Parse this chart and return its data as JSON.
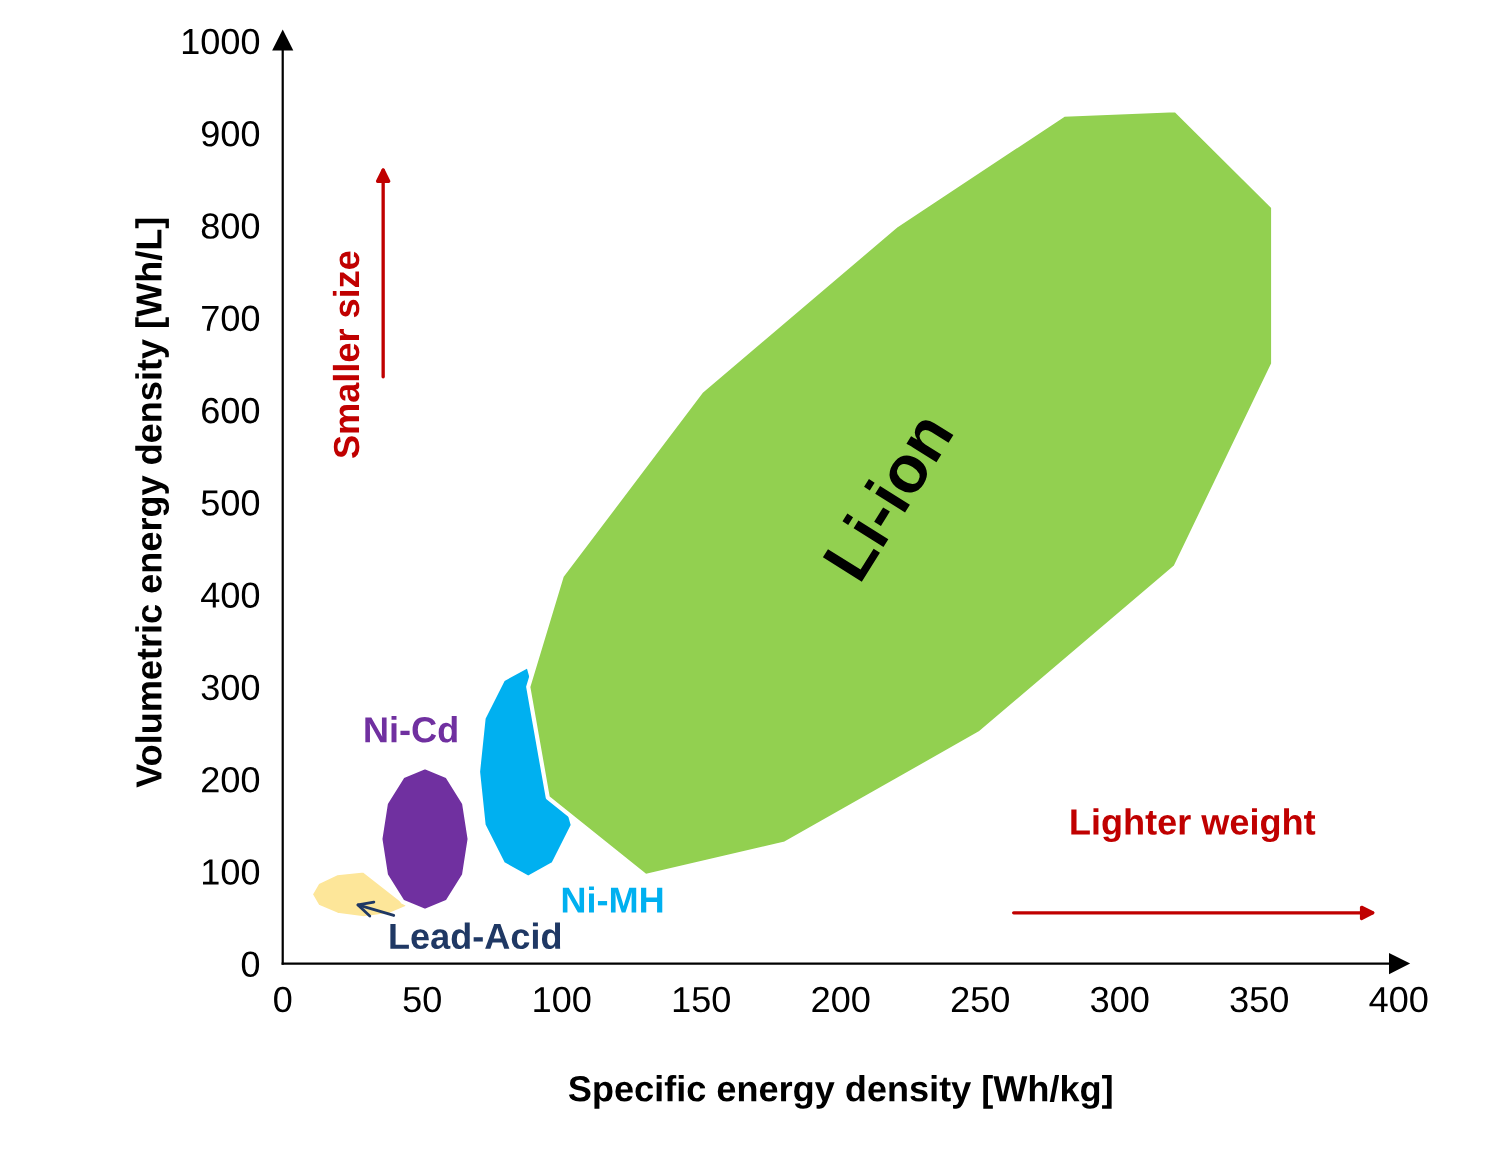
{
  "chart_data": {
    "type": "area",
    "xlabel": "Specific energy density [Wh/kg]",
    "ylabel": "Volumetric energy density [Wh/L]",
    "xlim": [
      0,
      400
    ],
    "ylim": [
      0,
      1000
    ],
    "xticks": [
      0,
      50,
      100,
      150,
      200,
      250,
      300,
      350,
      400
    ],
    "yticks": [
      0,
      100,
      200,
      300,
      400,
      500,
      600,
      700,
      800,
      900,
      1000
    ],
    "grid": false,
    "legend": false,
    "annotations": [
      "Smaller size",
      "Lighter weight"
    ],
    "series": [
      {
        "name": "Lead-Acid",
        "color": "#fde699",
        "x": [
          29,
          19.5,
          12.5,
          10,
          12.5,
          19.5,
          29,
          38.5,
          45.5
        ],
        "values": [
          101,
          98,
          88,
          75,
          62,
          53,
          49,
          53,
          62
        ]
      },
      {
        "name": "Ni-Cd",
        "color": "#7030a0",
        "x": [
          67,
          65,
          59,
          51,
          43,
          37,
          35,
          37,
          43,
          51,
          59,
          65
        ],
        "values": [
          135,
          174,
          203,
          213,
          203,
          174,
          135,
          96,
          67,
          57,
          67,
          96
        ]
      },
      {
        "name": "Ni-MH",
        "color": "#00b0f0",
        "x": [
          88,
          79,
          72,
          70,
          72,
          79,
          88,
          97,
          104
        ],
        "values": [
          323,
          308,
          266,
          208,
          150,
          108,
          93,
          108,
          150
        ]
      },
      {
        "name": "Li-ion",
        "color": "#92d050",
        "x": [
          130,
          180,
          250,
          320,
          355,
          355,
          320,
          280,
          220,
          150,
          100,
          88,
          95
        ],
        "values": [
          95,
          130,
          250,
          430,
          650,
          820,
          925,
          920,
          800,
          620,
          420,
          300,
          180
        ]
      }
    ]
  }
}
